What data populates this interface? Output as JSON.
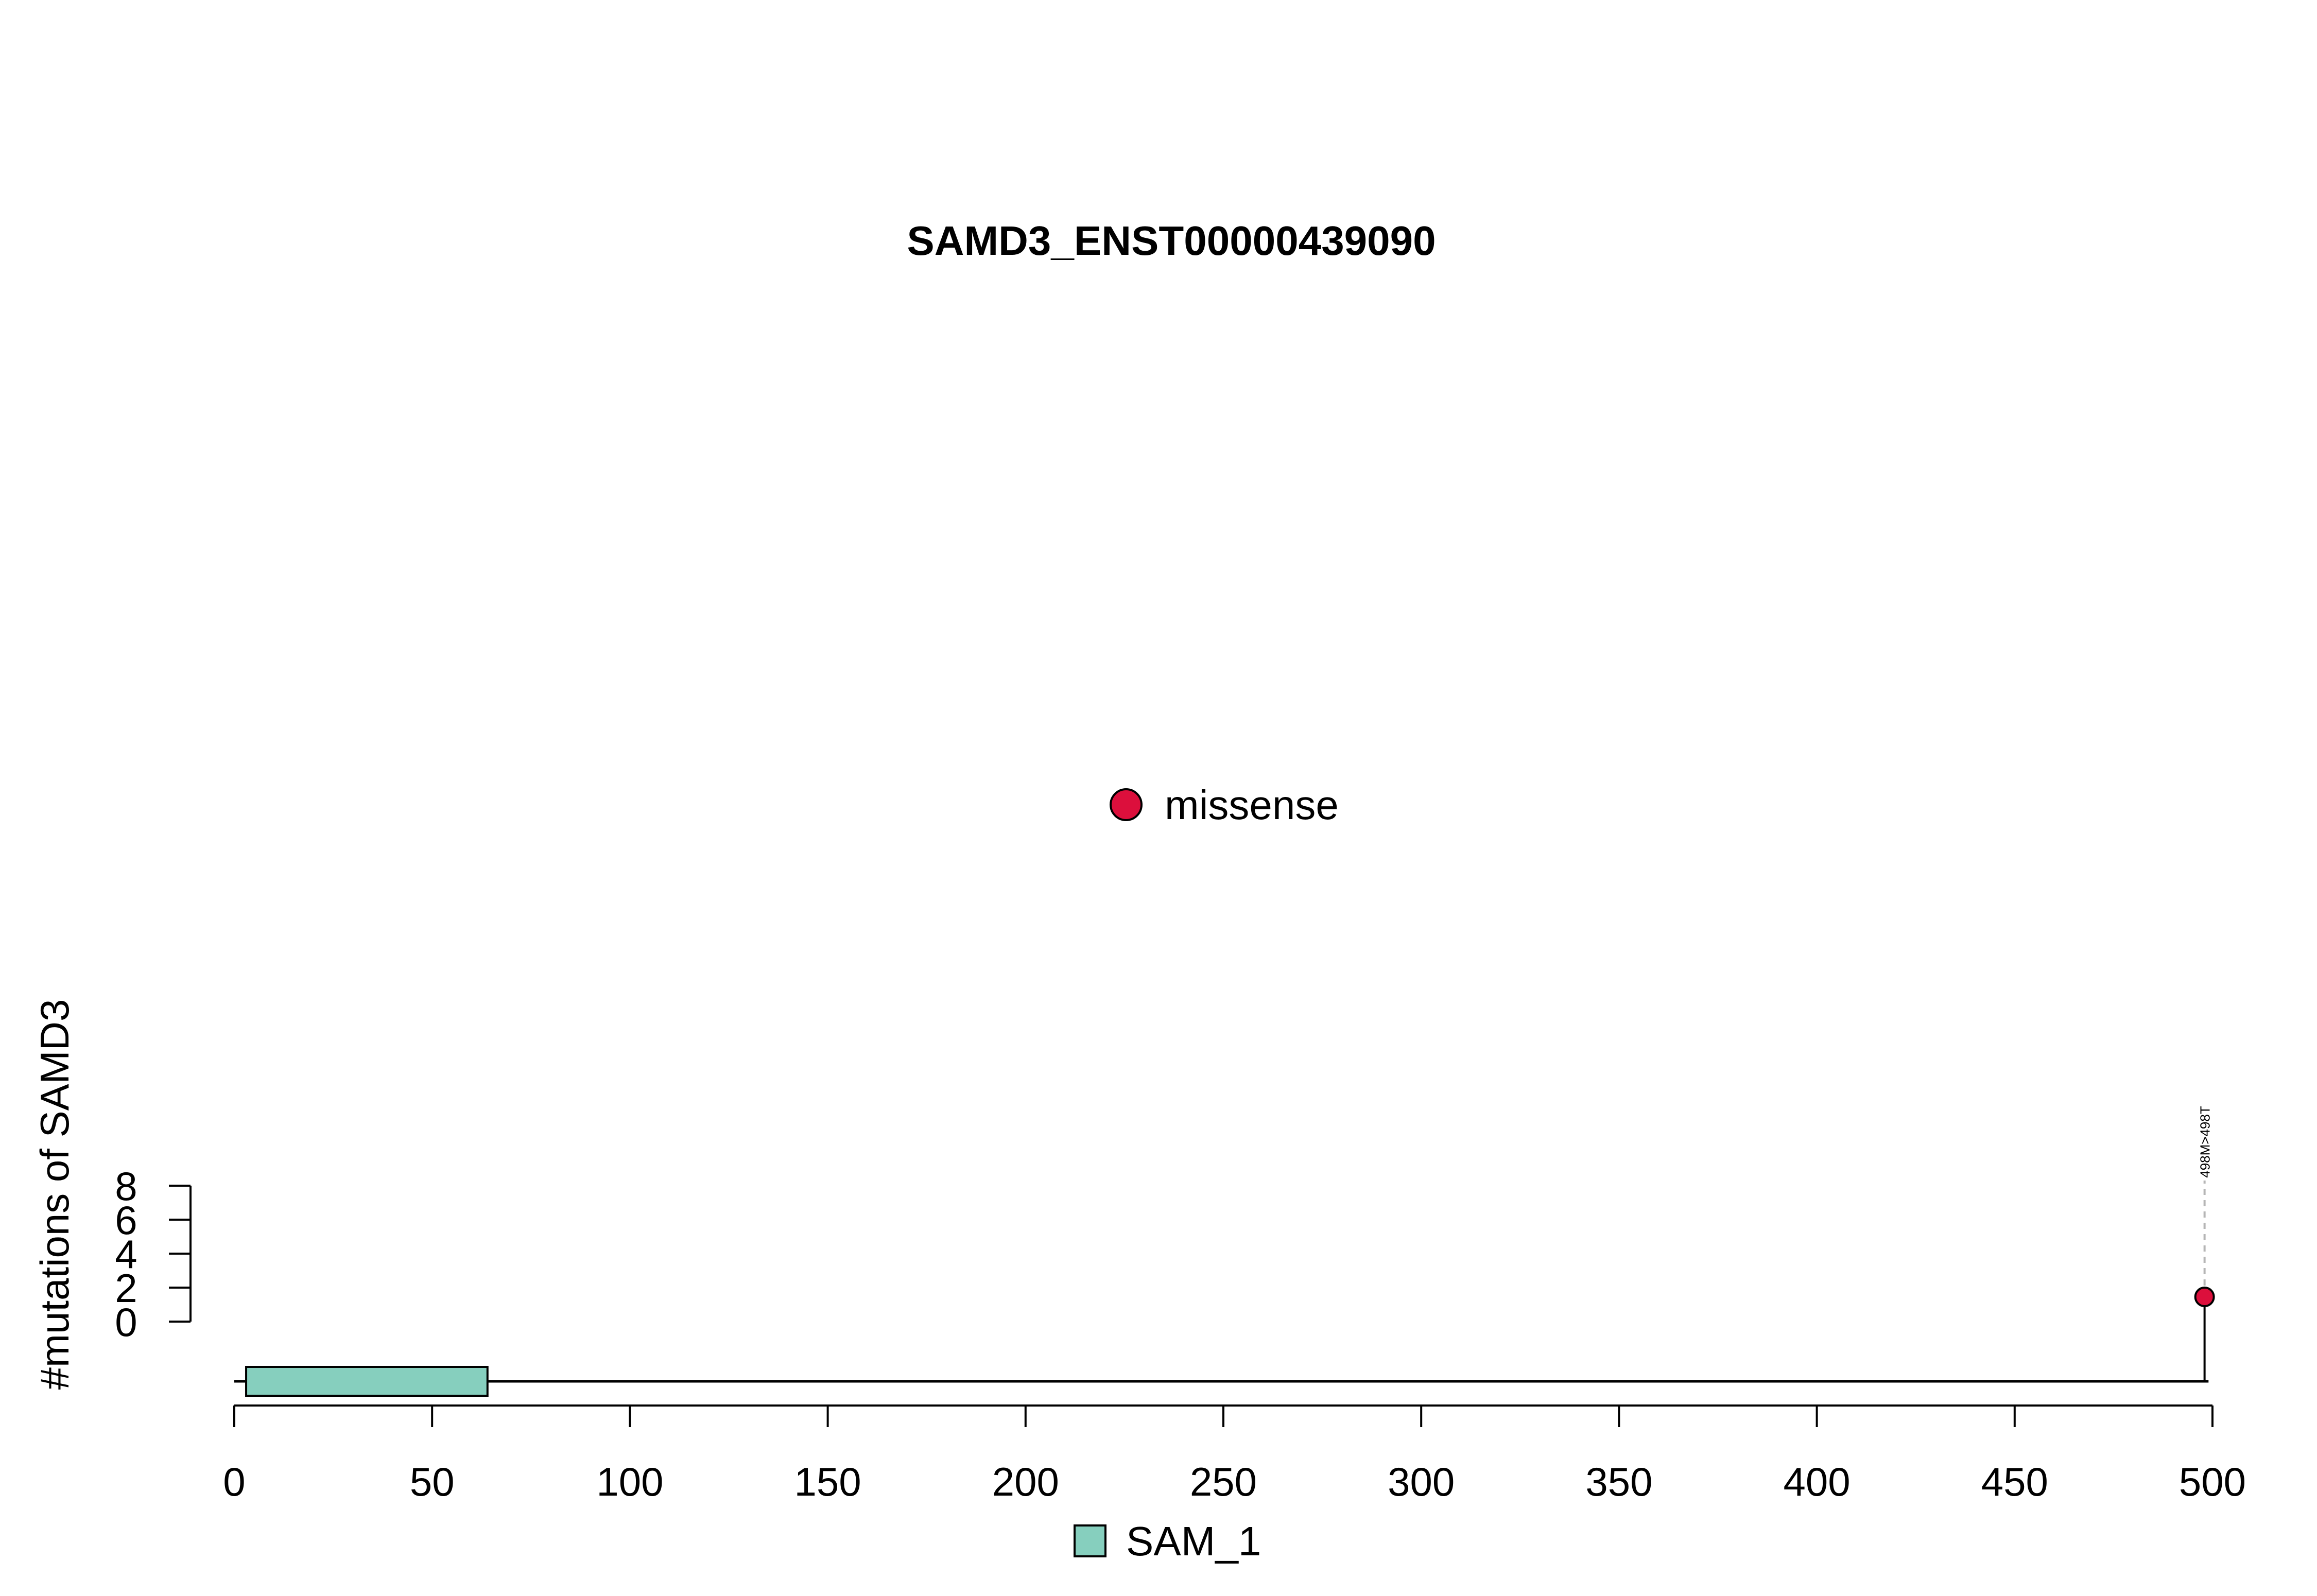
{
  "chart_data": {
    "type": "lollipop",
    "title": "SAMD3_ENST00000439090",
    "ylabel": "#mutations of SAMD3",
    "xlabel": "",
    "xlim": [
      0,
      500
    ],
    "x_ticks": [
      0,
      50,
      100,
      150,
      200,
      250,
      300,
      350,
      400,
      450,
      500
    ],
    "ylim": [
      0,
      8
    ],
    "y_ticks": [
      0,
      2,
      4,
      6,
      8
    ],
    "protein_length": 499,
    "domains": [
      {
        "name": "SAM_1",
        "start": 3,
        "end": 64,
        "color": "#86cfbe"
      }
    ],
    "mutations": [
      {
        "position": 498,
        "count": 1,
        "label": "498M>498T",
        "type": "missense",
        "color": "#dc0f3c"
      }
    ],
    "mutation_legend": [
      {
        "label": "missense",
        "color": "#dc0f3c"
      }
    ],
    "domain_legend": [
      {
        "label": "SAM_1",
        "color": "#86cfbe"
      }
    ],
    "legend_placement": "center",
    "grid": false
  }
}
